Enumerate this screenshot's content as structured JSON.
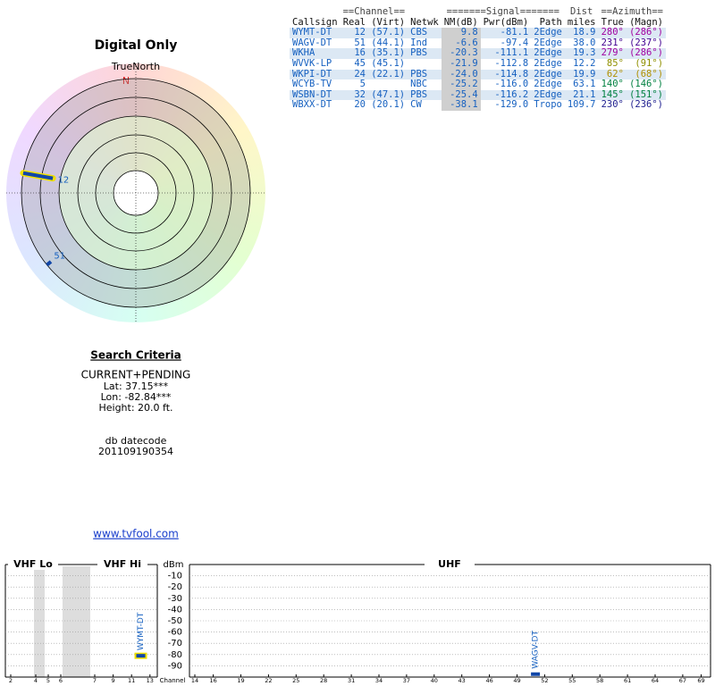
{
  "polar": {
    "title": "Digital Only",
    "north_label": "TrueNorth",
    "north_marker": "N",
    "markers": [
      {
        "label": "12",
        "azimuth": 280,
        "nm": 9.8
      },
      {
        "label": "51",
        "azimuth": 231,
        "nm": -6.6
      }
    ]
  },
  "table": {
    "group_headers": [
      "==Channel==",
      "=======Signal=======",
      "Dist",
      "==Azimuth=="
    ],
    "columns": [
      "Callsign",
      "Real",
      "(Virt)",
      "Netwk",
      "NM(dB)",
      "Pwr(dBm)",
      "Path",
      "miles",
      "True",
      "(Magn)"
    ],
    "rows": [
      {
        "cells": [
          "WYMT-DT",
          "12",
          "(57.1)",
          "CBS",
          "9.8",
          "-81.1",
          "2Edge",
          "18.9",
          "280°",
          "(286°)"
        ],
        "azimuth_color": "#a000a0"
      },
      {
        "cells": [
          "WAGV-DT",
          "51",
          "(44.1)",
          "Ind",
          "-6.6",
          "-97.4",
          "2Edge",
          "38.0",
          "231°",
          "(237°)"
        ],
        "azimuth_color": "#400090"
      },
      {
        "cells": [
          "WKHA",
          "16",
          "(35.1)",
          "PBS",
          "-20.3",
          "-111.1",
          "2Edge",
          "19.3",
          "279°",
          "(286°)"
        ],
        "azimuth_color": "#a000a0"
      },
      {
        "cells": [
          "WVVK-LP",
          "45",
          "(45.1)",
          "",
          "-21.9",
          "-112.8",
          "2Edge",
          "12.2",
          "85°",
          "(91°)"
        ],
        "azimuth_color": "#909000"
      },
      {
        "cells": [
          "WKPI-DT",
          "24",
          "(22.1)",
          "PBS",
          "-24.0",
          "-114.8",
          "2Edge",
          "19.9",
          "62°",
          "(68°)"
        ],
        "azimuth_color": "#b09000"
      },
      {
        "cells": [
          "WCYB-TV",
          "5",
          "",
          "NBC",
          "-25.2",
          "-116.0",
          "2Edge",
          "63.1",
          "140°",
          "(146°)"
        ],
        "azimuth_color": "#008040"
      },
      {
        "cells": [
          "WSBN-DT",
          "32",
          "(47.1)",
          "PBS",
          "-25.4",
          "-116.2",
          "2Edge",
          "21.1",
          "145°",
          "(151°)"
        ],
        "azimuth_color": "#008040"
      },
      {
        "cells": [
          "WBXX-DT",
          "20",
          "(20.1)",
          "CW",
          "-38.1",
          "-129.0",
          "Tropo",
          "109.7",
          "230°",
          "(236°)"
        ],
        "azimuth_color": "#202090"
      }
    ]
  },
  "criteria": {
    "title": "Search Criteria",
    "mode": "CURRENT+PENDING",
    "lat": "Lat: 37.15***",
    "lon": "Lon: -82.84***",
    "height": "Height: 20.0 ft.",
    "datecode_label": "db datecode",
    "datecode": "201109190354"
  },
  "link": "www.tvfool.com",
  "spectrum": {
    "bands": [
      "VHF Lo",
      "VHF Hi",
      "UHF"
    ],
    "y_label": "dBm",
    "ylim": [
      -100,
      0
    ],
    "yticks": [
      -10,
      -20,
      -30,
      -40,
      -50,
      -60,
      -70,
      -80,
      -90
    ],
    "x_label": "Channel",
    "vhf_ticks": [
      2,
      4,
      5,
      6,
      7,
      9,
      11,
      13
    ],
    "uhf_ticks": [
      14,
      16,
      19,
      22,
      25,
      28,
      31,
      34,
      37,
      40,
      43,
      46,
      49,
      52,
      55,
      58,
      61,
      64,
      67,
      69
    ],
    "stations": [
      {
        "callsign": "WYMT-DT",
        "channel": 12,
        "power": -81.1
      },
      {
        "callsign": "WAGV-DT",
        "channel": 51,
        "power": -97.4
      }
    ]
  }
}
